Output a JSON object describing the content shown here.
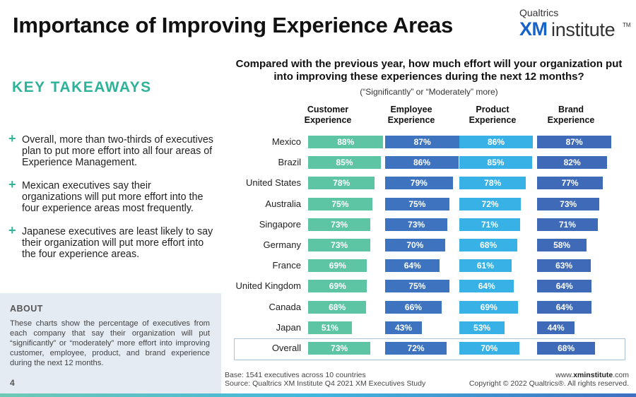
{
  "header": {
    "title": "Importance of Improving Experience Areas",
    "logo_top": "Qualtrics",
    "logo_xm": "XM",
    "logo_institute": "institute",
    "logo_tm": "TM"
  },
  "takeaways": {
    "title": "KEY TAKEAWAYS",
    "items": [
      "Overall, more than two-thirds of executives plan to put more effort into all four areas of Experience Management.",
      "Mexican executives say their organizations will put more effort into the four experience areas most frequently.",
      "Japanese executives are least likely to say their organization will put more effort into the four experience areas."
    ]
  },
  "about": {
    "title": "ABOUT",
    "text": "These charts show the percentage of executives from each company that say their organization will put “significantly” or “moderately” more effort into improving customer, employee, product, and brand experience during the next 12 months.",
    "page_number": "4"
  },
  "chart_data": {
    "type": "bar",
    "orientation": "horizontal",
    "title": "Compared with the previous year, how much effort will your organization put into improving these experiences during the next 12 months?",
    "subtitle": "(“Significantly” or “Moderately” more)",
    "categories": [
      "Mexico",
      "Brazil",
      "United States",
      "Australia",
      "Singapore",
      "Germany",
      "France",
      "United Kingdom",
      "Canada",
      "Japan",
      "Overall"
    ],
    "series": [
      {
        "name": "Customer Experience",
        "color": "#5dc5a4",
        "values": [
          88,
          85,
          78,
          75,
          73,
          73,
          69,
          69,
          68,
          51,
          73
        ]
      },
      {
        "name": "Employee Experience",
        "color": "#3e74bf",
        "values": [
          87,
          86,
          79,
          75,
          73,
          70,
          64,
          75,
          66,
          43,
          72
        ]
      },
      {
        "name": "Product Experience",
        "color": "#38b2e6",
        "values": [
          86,
          85,
          78,
          72,
          71,
          68,
          61,
          64,
          69,
          53,
          70
        ]
      },
      {
        "name": "Brand Experience",
        "color": "#3f6ab8",
        "values": [
          87,
          82,
          77,
          73,
          71,
          58,
          63,
          64,
          64,
          44,
          68
        ]
      }
    ],
    "value_suffix": "%",
    "xlim": [
      0,
      100
    ],
    "highlighted_category": "Overall"
  },
  "footer": {
    "base": "Base: 1541 executives across 10 countries",
    "source": "Source: Qualtrics XM Institute Q4 2021 XM Executives Study",
    "website_prefix": "www.",
    "website_bold": "xminstitute",
    "website_suffix": ".com",
    "copyright": "Copyright © 2022 Qualtrics®. All rights reserved."
  }
}
